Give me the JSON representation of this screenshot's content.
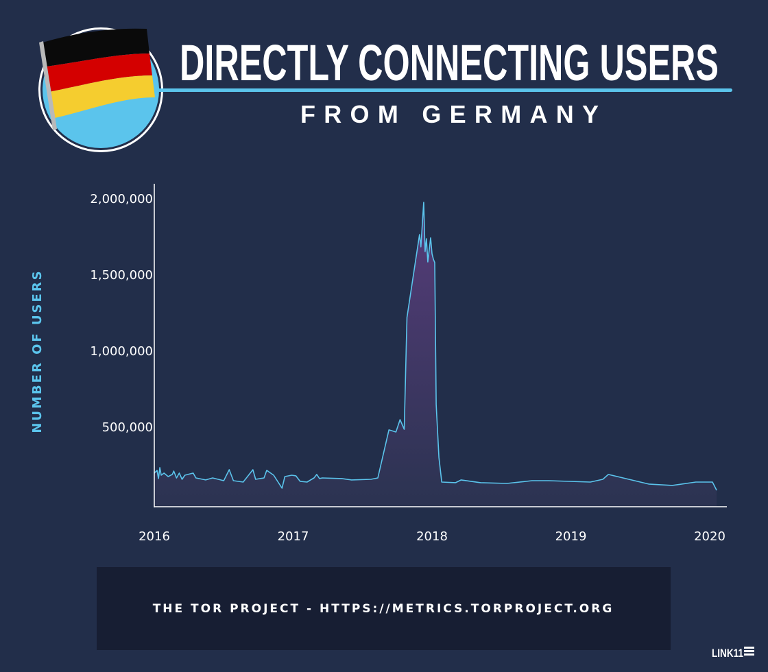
{
  "header": {
    "title": "DIRECTLY CONNECTING USERS",
    "subtitle": "FROM GERMANY",
    "flag_icon": "germany-flag-icon"
  },
  "footer": {
    "source": "THE TOR PROJECT - HTTPS://METRICS.TORPROJECT.ORG",
    "logo": "LINK11"
  },
  "colors": {
    "background": "#222e4a",
    "accent": "#5bc4ec",
    "fill_top": "#573c7a",
    "fill_bottom": "#2b3351",
    "footer_box": "#171e33"
  },
  "chart_data": {
    "type": "area",
    "title": "DIRECTLY CONNECTING USERS FROM GERMANY",
    "xlabel": "",
    "ylabel": "NUMBER OF USERS",
    "xlim": [
      2016,
      2020.1
    ],
    "ylim": [
      0,
      2100000
    ],
    "x_ticks": [
      "2016",
      "2017",
      "2018",
      "2019",
      "2020"
    ],
    "x_tick_values": [
      2016,
      2017,
      2018,
      2019,
      2020
    ],
    "y_ticks": [
      "500,000",
      "1,000,000",
      "1,500,000",
      "2,000,000"
    ],
    "y_tick_values": [
      500000,
      1000000,
      1500000,
      2000000
    ],
    "grid": false,
    "legend": "none",
    "series": [
      {
        "points": [
          [
            2016.0,
            194000
          ],
          [
            2016.02,
            212000
          ],
          [
            2016.03,
            158000
          ],
          [
            2016.04,
            230000
          ],
          [
            2016.05,
            180000
          ],
          [
            2016.07,
            194000
          ],
          [
            2016.1,
            171000
          ],
          [
            2016.13,
            185000
          ],
          [
            2016.14,
            207000
          ],
          [
            2016.16,
            162000
          ],
          [
            2016.18,
            194000
          ],
          [
            2016.2,
            153000
          ],
          [
            2016.22,
            180000
          ],
          [
            2016.28,
            194000
          ],
          [
            2016.3,
            162000
          ],
          [
            2016.37,
            149000
          ],
          [
            2016.42,
            162000
          ],
          [
            2016.5,
            144000
          ],
          [
            2016.54,
            216000
          ],
          [
            2016.57,
            144000
          ],
          [
            2016.64,
            135000
          ],
          [
            2016.71,
            216000
          ],
          [
            2016.73,
            153000
          ],
          [
            2016.79,
            162000
          ],
          [
            2016.81,
            212000
          ],
          [
            2016.86,
            180000
          ],
          [
            2016.92,
            95000
          ],
          [
            2016.94,
            171000
          ],
          [
            2016.99,
            180000
          ],
          [
            2017.02,
            176000
          ],
          [
            2017.05,
            140000
          ],
          [
            2017.1,
            135000
          ],
          [
            2017.15,
            162000
          ],
          [
            2017.17,
            185000
          ],
          [
            2017.19,
            158000
          ],
          [
            2017.21,
            162000
          ],
          [
            2017.35,
            158000
          ],
          [
            2017.42,
            149000
          ],
          [
            2017.56,
            153000
          ],
          [
            2017.61,
            162000
          ],
          [
            2017.69,
            478000
          ],
          [
            2017.74,
            464000
          ],
          [
            2017.77,
            545000
          ],
          [
            2017.8,
            482000
          ],
          [
            2017.82,
            1216000
          ],
          [
            2017.91,
            1761000
          ],
          [
            2017.92,
            1680000
          ],
          [
            2017.94,
            1973000
          ],
          [
            2017.95,
            1649000
          ],
          [
            2017.96,
            1734000
          ],
          [
            2017.97,
            1581000
          ],
          [
            2017.99,
            1739000
          ],
          [
            2018.0,
            1635000
          ],
          [
            2018.01,
            1599000
          ],
          [
            2018.02,
            1577000
          ],
          [
            2018.03,
            644000
          ],
          [
            2018.05,
            297000
          ],
          [
            2018.07,
            135000
          ],
          [
            2018.17,
            131000
          ],
          [
            2018.21,
            149000
          ],
          [
            2018.35,
            131000
          ],
          [
            2018.54,
            126000
          ],
          [
            2018.72,
            144000
          ],
          [
            2018.84,
            144000
          ],
          [
            2019.14,
            135000
          ],
          [
            2019.23,
            153000
          ],
          [
            2019.27,
            185000
          ],
          [
            2019.56,
            122000
          ],
          [
            2019.73,
            113000
          ],
          [
            2019.9,
            135000
          ],
          [
            2020.02,
            135000
          ],
          [
            2020.05,
            81000
          ]
        ]
      }
    ]
  }
}
